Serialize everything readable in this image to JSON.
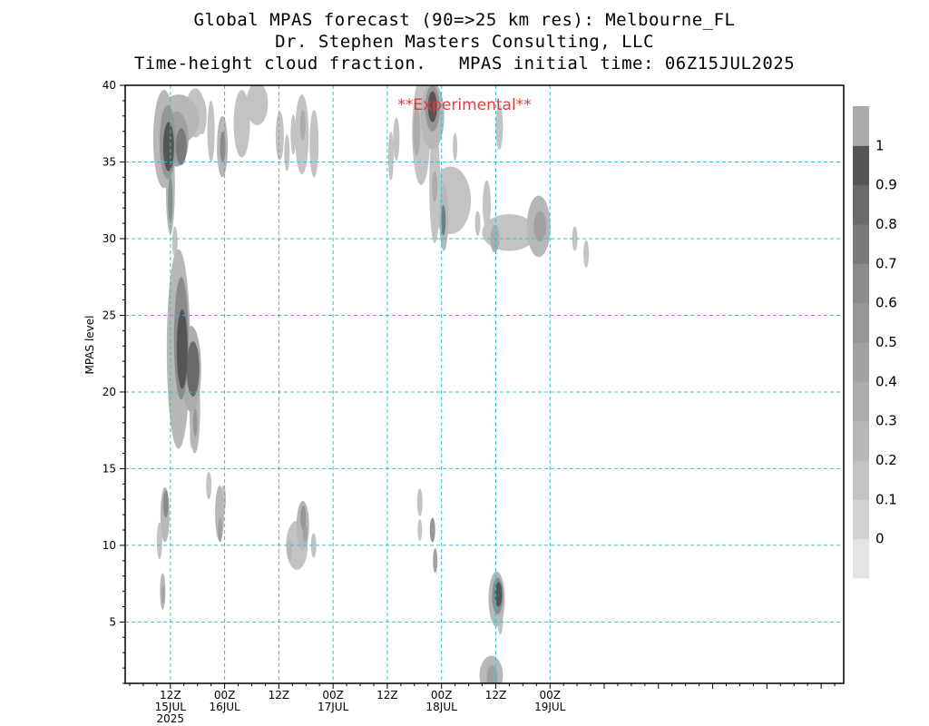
{
  "chart_data": {
    "type": "heatmap",
    "title_lines": [
      "Global MPAS forecast (90=>25 km res): Melbourne_FL",
      "Dr. Stephen Masters Consulting, LLC",
      "Time-height cloud fraction.   MPAS initial time: 06Z15JUL2025"
    ],
    "annotation": "**Experimental**",
    "ylabel": "MPAS level",
    "ylim": [
      1,
      40
    ],
    "y_ticks": [
      5,
      10,
      15,
      20,
      25,
      30,
      35,
      40
    ],
    "x_range_hours": [
      -4,
      155
    ],
    "x_ticks": [
      {
        "hour": 6,
        "lines": [
          "12Z",
          "15JUL",
          "2025"
        ]
      },
      {
        "hour": 18,
        "lines": [
          "00Z",
          "16JUL"
        ]
      },
      {
        "hour": 30,
        "lines": [
          "12Z"
        ]
      },
      {
        "hour": 42,
        "lines": [
          "00Z",
          "17JUL"
        ]
      },
      {
        "hour": 54,
        "lines": [
          "12Z"
        ]
      },
      {
        "hour": 66,
        "lines": [
          "00Z",
          "18JUL"
        ]
      },
      {
        "hour": 78,
        "lines": [
          "12Z"
        ]
      },
      {
        "hour": 90,
        "lines": [
          "00Z",
          "19JUL"
        ]
      }
    ],
    "grid": true,
    "colorbar": {
      "position": "right",
      "levels": [
        0,
        0.1,
        0.2,
        0.3,
        0.4,
        0.5,
        0.6,
        0.7,
        0.8,
        0.9,
        1
      ],
      "colors": [
        "#e4e4e4",
        "#d2d2d2",
        "#c3c3c3",
        "#b7b7b7",
        "#acacac",
        "#a1a1a1",
        "#969696",
        "#8b8b8b",
        "#7a7a7a",
        "#6a6a6a",
        "#555555",
        "#aaaaaa"
      ]
    },
    "regions": [
      {
        "hour": 4.6,
        "level": 36.5,
        "rx": 2.4,
        "ry": 3.2,
        "value": 0.2
      },
      {
        "hour": 5.4,
        "level": 36.3,
        "rx": 1.8,
        "ry": 2.4,
        "value": 0.5
      },
      {
        "hour": 5.6,
        "level": 36.0,
        "rx": 1.2,
        "ry": 1.6,
        "value": 0.9
      },
      {
        "hour": 6.0,
        "level": 33.5,
        "rx": 1.0,
        "ry": 3.2,
        "value": 0.2
      },
      {
        "hour": 6.0,
        "level": 32.5,
        "rx": 0.5,
        "ry": 1.5,
        "value": 0.6
      },
      {
        "hour": 7.8,
        "level": 37.8,
        "rx": 4.6,
        "ry": 1.6,
        "value": 0.2
      },
      {
        "hour": 7.4,
        "level": 36.5,
        "rx": 2.6,
        "ry": 1.8,
        "value": 0.4
      },
      {
        "hour": 8.4,
        "level": 36.0,
        "rx": 1.2,
        "ry": 1.2,
        "value": 0.7
      },
      {
        "hour": 11.5,
        "level": 38.2,
        "rx": 2.2,
        "ry": 1.6,
        "value": 0.1
      },
      {
        "hour": 13.0,
        "level": 38.0,
        "rx": 1.0,
        "ry": 1.2,
        "value": 0.1
      },
      {
        "hour": 15.0,
        "level": 37.0,
        "rx": 0.8,
        "ry": 2.0,
        "value": 0.1
      },
      {
        "hour": 17.5,
        "level": 36.0,
        "rx": 1.2,
        "ry": 2.0,
        "value": 0.2
      },
      {
        "hour": 17.6,
        "level": 36.0,
        "rx": 0.6,
        "ry": 1.0,
        "value": 0.6
      },
      {
        "hour": 21.8,
        "level": 37.5,
        "rx": 1.8,
        "ry": 2.2,
        "value": 0.1
      },
      {
        "hour": 25.2,
        "level": 38.8,
        "rx": 2.4,
        "ry": 1.4,
        "value": 0.1
      },
      {
        "hour": 30.2,
        "level": 36.7,
        "rx": 0.9,
        "ry": 1.6,
        "value": 0.1
      },
      {
        "hour": 31.8,
        "level": 35.6,
        "rx": 0.6,
        "ry": 1.2,
        "value": 0.1
      },
      {
        "hour": 33.2,
        "level": 36.8,
        "rx": 0.6,
        "ry": 1.3,
        "value": 0.1
      },
      {
        "hour": 35.1,
        "level": 36.8,
        "rx": 1.5,
        "ry": 2.6,
        "value": 0.1
      },
      {
        "hour": 35.3,
        "level": 37.4,
        "rx": 0.6,
        "ry": 1.0,
        "value": 0.3
      },
      {
        "hour": 37.8,
        "level": 36.2,
        "rx": 1.0,
        "ry": 2.2,
        "value": 0.1
      },
      {
        "hour": 54.8,
        "level": 35.4,
        "rx": 0.6,
        "ry": 1.6,
        "value": 0.1
      },
      {
        "hour": 56.0,
        "level": 36.5,
        "rx": 0.7,
        "ry": 1.4,
        "value": 0.1
      },
      {
        "hour": 61.5,
        "level": 37.0,
        "rx": 2.0,
        "ry": 3.5,
        "value": 0.1
      },
      {
        "hour": 60.5,
        "level": 37.0,
        "rx": 0.8,
        "ry": 1.6,
        "value": 0.3
      },
      {
        "hour": 64.0,
        "level": 38.0,
        "rx": 2.6,
        "ry": 2.2,
        "value": 0.2
      },
      {
        "hour": 64.0,
        "level": 38.5,
        "rx": 1.6,
        "ry": 1.5,
        "value": 0.5
      },
      {
        "hour": 64.0,
        "level": 38.6,
        "rx": 1.0,
        "ry": 1.0,
        "value": 0.9
      },
      {
        "hour": 64.5,
        "level": 33.5,
        "rx": 1.2,
        "ry": 3.8,
        "value": 0.1
      },
      {
        "hour": 64.5,
        "level": 33.4,
        "rx": 0.6,
        "ry": 1.0,
        "value": 0.3
      },
      {
        "hour": 66.5,
        "level": 31.4,
        "rx": 1.0,
        "ry": 2.2,
        "value": 0.2
      },
      {
        "hour": 66.4,
        "level": 31.2,
        "rx": 0.5,
        "ry": 1.0,
        "value": 0.7
      },
      {
        "hour": 68.0,
        "level": 32.5,
        "rx": 4.5,
        "ry": 2.2,
        "value": 0.1
      },
      {
        "hour": 69.0,
        "level": 36.0,
        "rx": 0.5,
        "ry": 0.9,
        "value": 0.1
      },
      {
        "hour": 74.0,
        "level": 31.0,
        "rx": 0.6,
        "ry": 0.8,
        "value": 0.1
      },
      {
        "hour": 76.0,
        "level": 32.2,
        "rx": 0.9,
        "ry": 1.6,
        "value": 0.1
      },
      {
        "hour": 81.0,
        "level": 30.4,
        "rx": 6.0,
        "ry": 1.2,
        "value": 0.1
      },
      {
        "hour": 77.8,
        "level": 30.0,
        "rx": 1.0,
        "ry": 0.9,
        "value": 0.3
      },
      {
        "hour": 87.5,
        "level": 30.8,
        "rx": 2.6,
        "ry": 2.0,
        "value": 0.2
      },
      {
        "hour": 87.8,
        "level": 30.8,
        "rx": 1.4,
        "ry": 1.0,
        "value": 0.4
      },
      {
        "hour": 78.8,
        "level": 37.3,
        "rx": 0.8,
        "ry": 1.5,
        "value": 0.1
      },
      {
        "hour": 95.5,
        "level": 30.0,
        "rx": 0.6,
        "ry": 0.8,
        "value": 0.1
      },
      {
        "hour": 98.0,
        "level": 29.0,
        "rx": 0.6,
        "ry": 0.9,
        "value": 0.1
      },
      {
        "hour": 7.0,
        "level": 29.8,
        "rx": 0.6,
        "ry": 1.0,
        "value": 0.1
      },
      {
        "hour": 7.8,
        "level": 22.8,
        "rx": 2.6,
        "ry": 6.5,
        "value": 0.2
      },
      {
        "hour": 8.4,
        "level": 23.5,
        "rx": 1.6,
        "ry": 4.0,
        "value": 0.6
      },
      {
        "hour": 8.6,
        "level": 22.8,
        "rx": 1.2,
        "ry": 2.6,
        "value": 0.9
      },
      {
        "hour": 10.6,
        "level": 21.5,
        "rx": 2.2,
        "ry": 2.8,
        "value": 0.3
      },
      {
        "hour": 11.0,
        "level": 21.5,
        "rx": 1.4,
        "ry": 1.8,
        "value": 0.8
      },
      {
        "hour": 11.4,
        "level": 19.0,
        "rx": 1.2,
        "ry": 3.0,
        "value": 0.2
      },
      {
        "hour": 11.5,
        "level": 18.0,
        "rx": 0.5,
        "ry": 0.9,
        "value": 0.5
      },
      {
        "hour": 10.8,
        "level": 17.2,
        "rx": 0.5,
        "ry": 0.9,
        "value": 0.1
      },
      {
        "hour": 14.5,
        "level": 13.9,
        "rx": 0.6,
        "ry": 0.9,
        "value": 0.1
      },
      {
        "hour": 16.9,
        "level": 12.1,
        "rx": 1.0,
        "ry": 1.8,
        "value": 0.2
      },
      {
        "hour": 17.0,
        "level": 11.0,
        "rx": 0.5,
        "ry": 0.8,
        "value": 0.4
      },
      {
        "hour": 17.7,
        "level": 13.0,
        "rx": 0.6,
        "ry": 0.9,
        "value": 0.1
      },
      {
        "hour": 4.8,
        "level": 12.0,
        "rx": 1.0,
        "ry": 1.8,
        "value": 0.2
      },
      {
        "hour": 5.0,
        "level": 12.7,
        "rx": 0.6,
        "ry": 0.9,
        "value": 0.6
      },
      {
        "hour": 3.6,
        "level": 10.3,
        "rx": 0.6,
        "ry": 1.2,
        "value": 0.1
      },
      {
        "hour": 4.3,
        "level": 7.0,
        "rx": 0.6,
        "ry": 1.2,
        "value": 0.2
      },
      {
        "hour": 4.4,
        "level": 6.8,
        "rx": 0.3,
        "ry": 0.6,
        "value": 0.4
      },
      {
        "hour": 34.0,
        "level": 10.0,
        "rx": 2.4,
        "ry": 1.6,
        "value": 0.1
      },
      {
        "hour": 35.3,
        "level": 11.3,
        "rx": 1.4,
        "ry": 1.6,
        "value": 0.2
      },
      {
        "hour": 35.4,
        "level": 11.8,
        "rx": 0.6,
        "ry": 0.8,
        "value": 0.5
      },
      {
        "hour": 35.8,
        "level": 10.8,
        "rx": 0.5,
        "ry": 0.6,
        "value": 0.4
      },
      {
        "hour": 37.7,
        "level": 10.0,
        "rx": 0.6,
        "ry": 0.8,
        "value": 0.1
      },
      {
        "hour": 32.4,
        "level": 9.7,
        "rx": 0.6,
        "ry": 0.7,
        "value": 0.2
      },
      {
        "hour": 61.2,
        "level": 12.8,
        "rx": 0.6,
        "ry": 0.9,
        "value": 0.1
      },
      {
        "hour": 61.2,
        "level": 11.0,
        "rx": 0.5,
        "ry": 0.7,
        "value": 0.1
      },
      {
        "hour": 64.0,
        "level": 11.0,
        "rx": 0.6,
        "ry": 0.8,
        "value": 0.5
      },
      {
        "hour": 64.6,
        "level": 9.0,
        "rx": 0.5,
        "ry": 0.8,
        "value": 0.4
      },
      {
        "hour": 78.2,
        "level": 6.5,
        "rx": 1.8,
        "ry": 1.8,
        "value": 0.2
      },
      {
        "hour": 78.4,
        "level": 6.7,
        "rx": 1.2,
        "ry": 1.2,
        "value": 0.6
      },
      {
        "hour": 78.6,
        "level": 6.8,
        "rx": 0.8,
        "ry": 0.8,
        "value": 0.9
      },
      {
        "hour": 79.0,
        "level": 5.0,
        "rx": 0.6,
        "ry": 0.8,
        "value": 0.1
      },
      {
        "hour": 77.0,
        "level": 1.5,
        "rx": 2.6,
        "ry": 1.3,
        "value": 0.2
      },
      {
        "hour": 77.2,
        "level": 1.4,
        "rx": 1.2,
        "ry": 0.8,
        "value": 0.4
      }
    ]
  }
}
